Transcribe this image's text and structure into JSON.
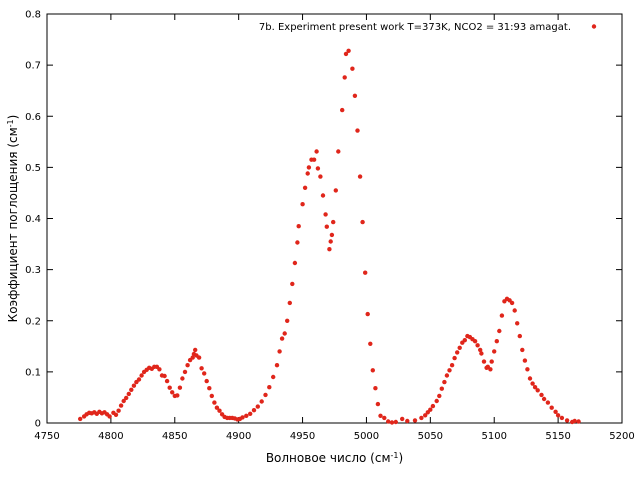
{
  "chart_data": {
    "type": "scatter",
    "xlabel_main": "Волновое число (см",
    "xlabel_sup": "-1",
    "xlabel_end": ")",
    "ylabel_main": "Коэффициент поглощения (см",
    "ylabel_sup": "-1",
    "ylabel_end": ")",
    "xlim": [
      4750,
      5200
    ],
    "ylim": [
      0,
      0.8
    ],
    "xticks": [
      4750,
      4800,
      4850,
      4900,
      4950,
      5000,
      5050,
      5100,
      5150,
      5200
    ],
    "yticks": [
      "0",
      "0.1",
      "0.2",
      "0.3",
      "0.4",
      "0.5",
      "0.6",
      "0.7",
      "0.8"
    ],
    "grid": false,
    "legend_position": "top-right",
    "series": [
      {
        "name": "7b. Experiment  present work T=373K, NCO2 = 31:93 amagat.",
        "color": "#e0261b",
        "points": [
          [
            4776,
            0.008
          ],
          [
            4779,
            0.013
          ],
          [
            4781,
            0.017
          ],
          [
            4783,
            0.02
          ],
          [
            4785,
            0.019
          ],
          [
            4787,
            0.021
          ],
          [
            4789,
            0.018
          ],
          [
            4791,
            0.022
          ],
          [
            4793,
            0.019
          ],
          [
            4795,
            0.021
          ],
          [
            4797,
            0.017
          ],
          [
            4799,
            0.013
          ],
          [
            4802,
            0.02
          ],
          [
            4804,
            0.016
          ],
          [
            4806,
            0.024
          ],
          [
            4808,
            0.034
          ],
          [
            4810,
            0.043
          ],
          [
            4812,
            0.049
          ],
          [
            4814,
            0.057
          ],
          [
            4816,
            0.065
          ],
          [
            4818,
            0.073
          ],
          [
            4820,
            0.08
          ],
          [
            4822,
            0.085
          ],
          [
            4824,
            0.093
          ],
          [
            4826,
            0.1
          ],
          [
            4828,
            0.104
          ],
          [
            4830,
            0.108
          ],
          [
            4832,
            0.106
          ],
          [
            4834,
            0.11
          ],
          [
            4836,
            0.11
          ],
          [
            4838,
            0.105
          ],
          [
            4840,
            0.093
          ],
          [
            4842,
            0.092
          ],
          [
            4844,
            0.082
          ],
          [
            4846,
            0.069
          ],
          [
            4848,
            0.06
          ],
          [
            4850,
            0.053
          ],
          [
            4852,
            0.054
          ],
          [
            4854,
            0.069
          ],
          [
            4856,
            0.087
          ],
          [
            4858,
            0.1
          ],
          [
            4860,
            0.113
          ],
          [
            4862,
            0.123
          ],
          [
            4864,
            0.128
          ],
          [
            4865,
            0.135
          ],
          [
            4866,
            0.143
          ],
          [
            4867,
            0.132
          ],
          [
            4869,
            0.128
          ],
          [
            4871,
            0.107
          ],
          [
            4873,
            0.097
          ],
          [
            4875,
            0.082
          ],
          [
            4877,
            0.068
          ],
          [
            4879,
            0.053
          ],
          [
            4881,
            0.04
          ],
          [
            4883,
            0.03
          ],
          [
            4885,
            0.024
          ],
          [
            4887,
            0.017
          ],
          [
            4889,
            0.012
          ],
          [
            4891,
            0.01
          ],
          [
            4893,
            0.01
          ],
          [
            4895,
            0.01
          ],
          [
            4897,
            0.009
          ],
          [
            4899,
            0.007
          ],
          [
            4901,
            0.008
          ],
          [
            4903,
            0.011
          ],
          [
            4906,
            0.014
          ],
          [
            4909,
            0.018
          ],
          [
            4912,
            0.025
          ],
          [
            4915,
            0.032
          ],
          [
            4918,
            0.042
          ],
          [
            4921,
            0.055
          ],
          [
            4924,
            0.07
          ],
          [
            4927,
            0.09
          ],
          [
            4930,
            0.113
          ],
          [
            4932,
            0.14
          ],
          [
            4934,
            0.165
          ],
          [
            4936,
            0.175
          ],
          [
            4938,
            0.2
          ],
          [
            4940,
            0.235
          ],
          [
            4942,
            0.272
          ],
          [
            4944,
            0.313
          ],
          [
            4946,
            0.353
          ],
          [
            4947,
            0.385
          ],
          [
            4950,
            0.428
          ],
          [
            4952,
            0.46
          ],
          [
            4954,
            0.488
          ],
          [
            4955,
            0.5
          ],
          [
            4957,
            0.515
          ],
          [
            4959,
            0.515
          ],
          [
            4961,
            0.531
          ],
          [
            4962,
            0.498
          ],
          [
            4964,
            0.482
          ],
          [
            4966,
            0.445
          ],
          [
            4968,
            0.408
          ],
          [
            4969,
            0.384
          ],
          [
            4971,
            0.34
          ],
          [
            4972,
            0.355
          ],
          [
            4973,
            0.368
          ],
          [
            4974,
            0.393
          ],
          [
            4976,
            0.455
          ],
          [
            4978,
            0.531
          ],
          [
            4981,
            0.612
          ],
          [
            4983,
            0.676
          ],
          [
            4984,
            0.722
          ],
          [
            4986,
            0.728
          ],
          [
            4989,
            0.693
          ],
          [
            4991,
            0.64
          ],
          [
            4993,
            0.572
          ],
          [
            4995,
            0.482
          ],
          [
            4997,
            0.393
          ],
          [
            4999,
            0.294
          ],
          [
            5001,
            0.213
          ],
          [
            5003,
            0.155
          ],
          [
            5005,
            0.103
          ],
          [
            5007,
            0.068
          ],
          [
            5009,
            0.037
          ],
          [
            5011,
            0.014
          ],
          [
            5014,
            0.01
          ],
          [
            5017,
            0.003
          ],
          [
            5020,
            0.001
          ],
          [
            5023,
            0.002
          ],
          [
            5028,
            0.008
          ],
          [
            5032,
            0.004
          ],
          [
            5038,
            0.005
          ],
          [
            5043,
            0.01
          ],
          [
            5046,
            0.015
          ],
          [
            5048,
            0.021
          ],
          [
            5050,
            0.026
          ],
          [
            5052,
            0.033
          ],
          [
            5055,
            0.043
          ],
          [
            5057,
            0.053
          ],
          [
            5059,
            0.067
          ],
          [
            5061,
            0.08
          ],
          [
            5063,
            0.093
          ],
          [
            5065,
            0.103
          ],
          [
            5067,
            0.113
          ],
          [
            5069,
            0.127
          ],
          [
            5071,
            0.138
          ],
          [
            5073,
            0.147
          ],
          [
            5075,
            0.157
          ],
          [
            5077,
            0.162
          ],
          [
            5079,
            0.17
          ],
          [
            5081,
            0.168
          ],
          [
            5083,
            0.164
          ],
          [
            5085,
            0.16
          ],
          [
            5087,
            0.152
          ],
          [
            5089,
            0.143
          ],
          [
            5090,
            0.136
          ],
          [
            5092,
            0.12
          ],
          [
            5094,
            0.108
          ],
          [
            5095,
            0.11
          ],
          [
            5097,
            0.105
          ],
          [
            5098,
            0.12
          ],
          [
            5100,
            0.14
          ],
          [
            5102,
            0.16
          ],
          [
            5104,
            0.18
          ],
          [
            5106,
            0.21
          ],
          [
            5108,
            0.238
          ],
          [
            5110,
            0.243
          ],
          [
            5112,
            0.24
          ],
          [
            5114,
            0.235
          ],
          [
            5116,
            0.22
          ],
          [
            5118,
            0.195
          ],
          [
            5120,
            0.17
          ],
          [
            5122,
            0.143
          ],
          [
            5124,
            0.122
          ],
          [
            5126,
            0.105
          ],
          [
            5128,
            0.087
          ],
          [
            5130,
            0.077
          ],
          [
            5132,
            0.07
          ],
          [
            5134,
            0.064
          ],
          [
            5137,
            0.055
          ],
          [
            5139,
            0.047
          ],
          [
            5142,
            0.04
          ],
          [
            5145,
            0.03
          ],
          [
            5148,
            0.022
          ],
          [
            5150,
            0.015
          ],
          [
            5153,
            0.01
          ],
          [
            5157,
            0.005
          ],
          [
            5161,
            0.002
          ],
          [
            5163,
            0.004
          ],
          [
            5166,
            0.003
          ]
        ]
      }
    ]
  }
}
